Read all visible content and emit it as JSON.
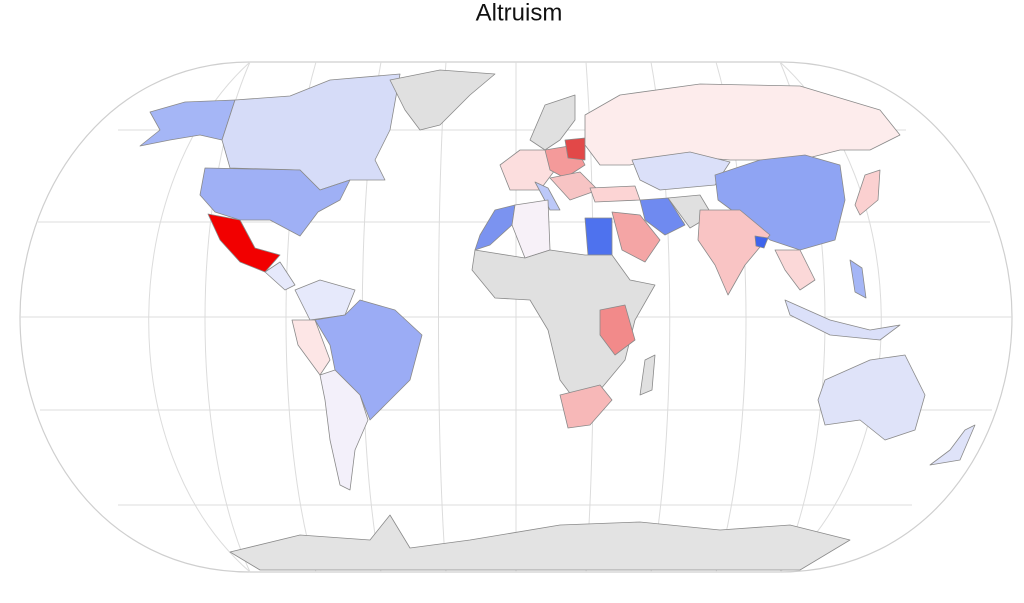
{
  "title": "Altruism"
}
